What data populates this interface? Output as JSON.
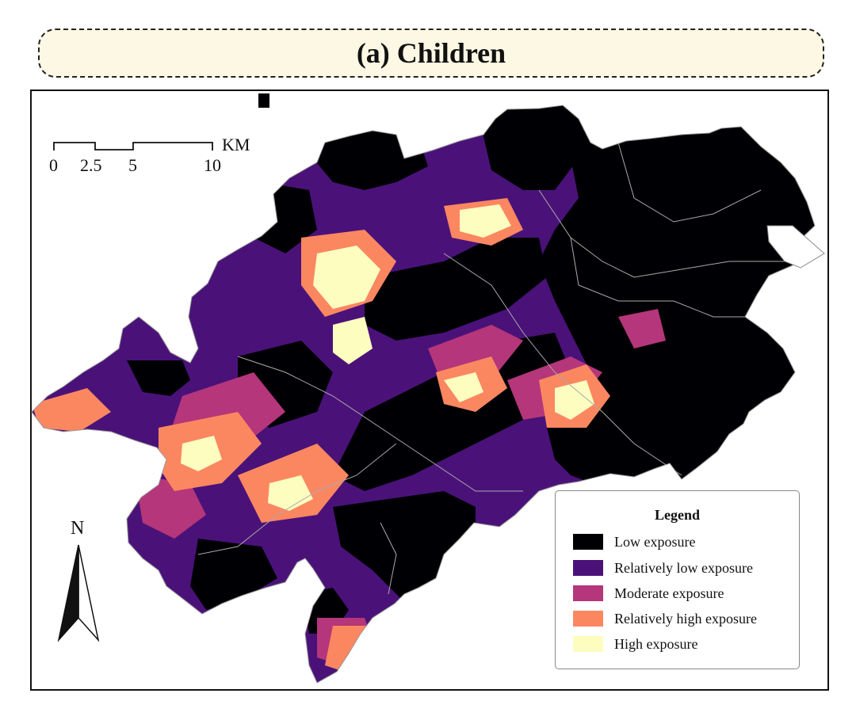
{
  "title": "(a) Children",
  "scale_bar": {
    "ticks": [
      "0",
      "2.5",
      "5",
      "10"
    ],
    "unit": "KM"
  },
  "north_arrow": {
    "label": "N"
  },
  "legend": {
    "title": "Legend",
    "items": [
      {
        "label": "Low exposure",
        "color": "#000004"
      },
      {
        "label": "Relatively low exposure",
        "color": "#4a1279"
      },
      {
        "label": "Moderate exposure",
        "color": "#b5367a"
      },
      {
        "label": "Relatively high exposure",
        "color": "#fb8761"
      },
      {
        "label": "High exposure",
        "color": "#fcfdbf"
      }
    ]
  }
}
